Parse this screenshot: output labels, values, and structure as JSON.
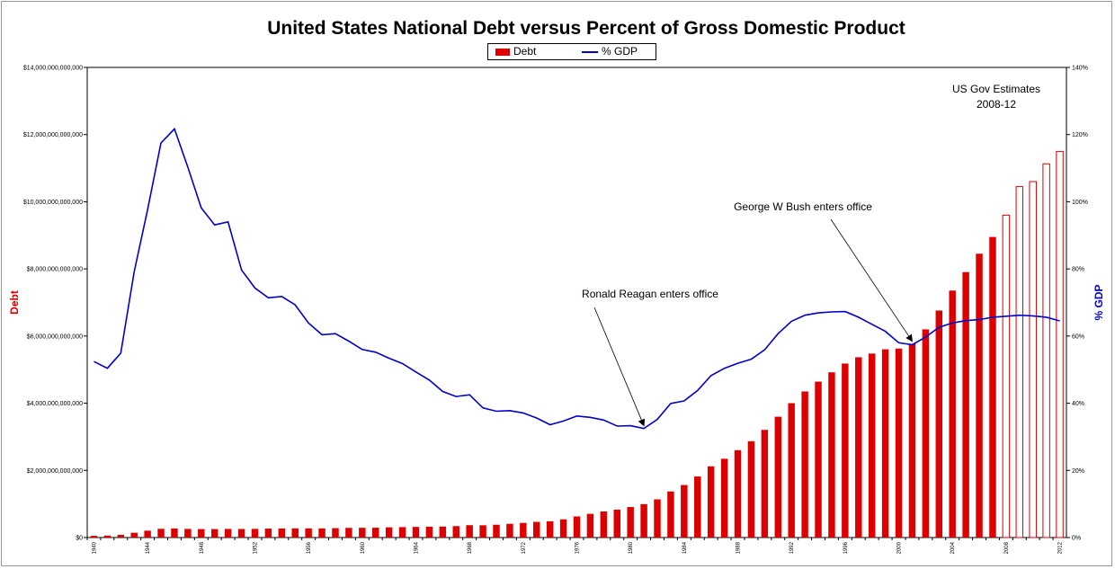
{
  "chart_data": {
    "type": "bar",
    "title": "United States National Debt versus Percent of Gross Domestic Product",
    "ylabel": "Debt",
    "y2label": "% GDP",
    "ylim": [
      0,
      14000000000000
    ],
    "y2lim": [
      0,
      140
    ],
    "legend_position": "top-center",
    "yticks": [
      "$0",
      "$2,000,000,000,000",
      "$4,000,000,000,000",
      "$6,000,000,000,000",
      "$8,000,000,000,000",
      "$10,000,000,000,000",
      "$12,000,000,000,000",
      "$14,000,000,000,000"
    ],
    "y2ticks": [
      "0%",
      "20%",
      "40%",
      "60%",
      "80%",
      "100%",
      "120%",
      "140%"
    ],
    "x_tick_labels": [
      "1940",
      "1944",
      "1948",
      "1952",
      "1956",
      "1960",
      "1964",
      "1968",
      "1972",
      "1976",
      "1980",
      "1984",
      "1988",
      "1992",
      "1996",
      "2000",
      "2004",
      "2008",
      "2012"
    ],
    "estimate_years": [
      "2008",
      "2009",
      "2010",
      "2011",
      "2012"
    ],
    "series": [
      {
        "name": "Debt",
        "kind": "bar",
        "color": "#dd0000",
        "x": [
          "1940",
          "1941",
          "1942",
          "1943",
          "1944",
          "1945",
          "1946",
          "1947",
          "1948",
          "1949",
          "1950",
          "1951",
          "1952",
          "1953",
          "1954",
          "1955",
          "1956",
          "1957",
          "1958",
          "1959",
          "1960",
          "1961",
          "1962",
          "1963",
          "1964",
          "1965",
          "1966",
          "1967",
          "1968",
          "1969",
          "1970",
          "1971",
          "1972",
          "1973",
          "1974",
          "1975",
          "1976",
          "1977",
          "1978",
          "1979",
          "1980",
          "1981",
          "1982",
          "1983",
          "1984",
          "1985",
          "1986",
          "1987",
          "1988",
          "1989",
          "1990",
          "1991",
          "1992",
          "1993",
          "1994",
          "1995",
          "1996",
          "1997",
          "1998",
          "1999",
          "2000",
          "2001",
          "2002",
          "2003",
          "2004",
          "2005",
          "2006",
          "2007",
          "2008",
          "2009",
          "2010",
          "2011",
          "2012"
        ],
        "values": [
          50700000000,
          57500000000,
          79200000000,
          142600000000,
          204100000000,
          260100000000,
          271000000000,
          257100000000,
          252000000000,
          252600000000,
          256900000000,
          255300000000,
          259100000000,
          266000000000,
          270800000000,
          274400000000,
          272700000000,
          272300000000,
          279700000000,
          287500000000,
          290500000000,
          292600000000,
          302900000000,
          310300000000,
          316100000000,
          322300000000,
          328500000000,
          340400000000,
          368700000000,
          365800000000,
          380900000000,
          408200000000,
          435900000000,
          466300000000,
          483900000000,
          541900000000,
          629000000000,
          706400000000,
          776600000000,
          829500000000,
          909000000000,
          994800000000,
          1137300000000,
          1371700000000,
          1564600000000,
          1817400000000,
          2120500000000,
          2346000000000,
          2601100000000,
          2867800000000,
          3206300000000,
          3598200000000,
          4001800000000,
          4351000000000,
          4643300000000,
          4920600000000,
          5181500000000,
          5369200000000,
          5478200000000,
          5605500000000,
          5628700000000,
          5769900000000,
          6198400000000,
          6760000000000,
          7354700000000,
          7905300000000,
          8451400000000,
          8950700000000,
          9600000000000,
          10450000000000,
          10600000000000,
          11130000000000,
          11500000000000
        ]
      },
      {
        "name": "% GDP",
        "kind": "line",
        "color": "#0000cc",
        "x": [
          "1940",
          "1941",
          "1942",
          "1943",
          "1944",
          "1945",
          "1946",
          "1947",
          "1948",
          "1949",
          "1950",
          "1951",
          "1952",
          "1953",
          "1954",
          "1955",
          "1956",
          "1957",
          "1958",
          "1959",
          "1960",
          "1961",
          "1962",
          "1963",
          "1964",
          "1965",
          "1966",
          "1967",
          "1968",
          "1969",
          "1970",
          "1971",
          "1972",
          "1973",
          "1974",
          "1975",
          "1976",
          "1977",
          "1978",
          "1979",
          "1980",
          "1981",
          "1982",
          "1983",
          "1984",
          "1985",
          "1986",
          "1987",
          "1988",
          "1989",
          "1990",
          "1991",
          "1992",
          "1993",
          "1994",
          "1995",
          "1996",
          "1997",
          "1998",
          "1999",
          "2000",
          "2001",
          "2002",
          "2003",
          "2004",
          "2005",
          "2006",
          "2007",
          "2008",
          "2009",
          "2010",
          "2011",
          "2012"
        ],
        "values": [
          52.4,
          50.4,
          54.9,
          79.1,
          97.6,
          117.5,
          121.7,
          110.3,
          98.2,
          93.1,
          94.0,
          79.7,
          74.3,
          71.4,
          71.8,
          69.3,
          63.9,
          60.4,
          60.7,
          58.5,
          56.0,
          55.2,
          53.4,
          51.8,
          49.3,
          46.9,
          43.5,
          42.0,
          42.5,
          38.6,
          37.6,
          37.8,
          37.1,
          35.6,
          33.6,
          34.7,
          36.2,
          35.8,
          35.0,
          33.2,
          33.3,
          32.5,
          35.2,
          39.9,
          40.7,
          43.8,
          48.2,
          50.4,
          51.9,
          53.1,
          55.9,
          60.7,
          64.4,
          66.2,
          66.9,
          67.2,
          67.3,
          65.6,
          63.5,
          61.4,
          58.0,
          57.4,
          59.7,
          62.6,
          63.9,
          64.6,
          64.9,
          65.6,
          65.9,
          66.2,
          66.0,
          65.6,
          64.5
        ]
      }
    ],
    "annotations": [
      {
        "text": "Ronald Reagan enters office",
        "target_x": "1981"
      },
      {
        "text": "George W Bush enters office",
        "target_x": "2001"
      }
    ],
    "note_lines": [
      "US Gov Estimates",
      "2008-12"
    ]
  }
}
